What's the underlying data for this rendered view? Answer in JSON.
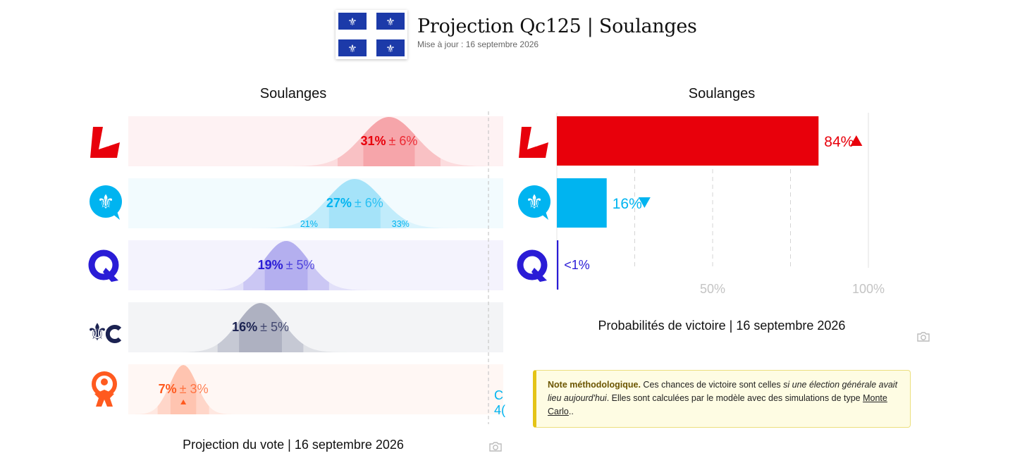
{
  "header": {
    "title": "Projection Qc125 | Soulanges",
    "updated": "Mise à jour : 16 septembre 2026"
  },
  "colors": {
    "plq": "#e8000b",
    "pq": "#00b4f0",
    "caq": "#2a1cd6",
    "pcq": "#1b2251",
    "qs": "#ff5a1f"
  },
  "vote_panel": {
    "title": "Soulanges",
    "caption": "Projection du vote | 16 septembre 2026",
    "cutoff_label_line1": "C",
    "cutoff_label_line2": "4("
  },
  "win_panel": {
    "title": "Soulanges",
    "caption": "Probabilités de victoire | 16 septembre 2026"
  },
  "note": {
    "heading": "Note méthodologique.",
    "text1": " Ces chances de victoire sont celles ",
    "italic": "si une élection générale avait lieu aujourd'hui",
    "text2": ". Elles sont calculées par le modèle avec des simulations de type ",
    "link": "Monte Carlo",
    "text3": ".."
  },
  "chart_data": [
    {
      "type": "bar",
      "subtype": "vote-projection-range",
      "title": "Soulanges",
      "caption": "Projection du vote | 16 septembre 2026",
      "xlim": [
        0,
        50
      ],
      "rows": [
        {
          "party_icon": "plq-logo",
          "color": "#e8000b",
          "value": 31,
          "margin": 6,
          "label": "31%",
          "margin_label": "± 6%",
          "trend": ""
        },
        {
          "party_icon": "pq-logo",
          "color": "#00b4f0",
          "value": 27,
          "margin": 6,
          "label": "27%",
          "margin_label": "± 6%",
          "trend": "",
          "range_low_label": "21%",
          "range_high_label": "33%"
        },
        {
          "party_icon": "caq-logo",
          "color": "#2a1cd6",
          "value": 19,
          "margin": 5,
          "label": "19%",
          "margin_label": "± 5%",
          "trend": ""
        },
        {
          "party_icon": "pcq-logo",
          "color": "#1b2251",
          "value": 16,
          "margin": 5,
          "label": "16%",
          "margin_label": "± 5%",
          "trend": ""
        },
        {
          "party_icon": "qs-logo",
          "color": "#ff5a1f",
          "value": 7,
          "margin": 3,
          "label": "7%",
          "margin_label": "± 3%",
          "trend": "up"
        }
      ]
    },
    {
      "type": "bar",
      "subtype": "win-probability",
      "title": "Soulanges",
      "caption": "Probabilités de victoire | 16 septembre 2026",
      "xlim": [
        0,
        100
      ],
      "xticks": [
        "50%",
        "100%"
      ],
      "rows": [
        {
          "party_icon": "plq-logo",
          "color": "#e8000b",
          "value": 84,
          "label": "84%",
          "trend": "up"
        },
        {
          "party_icon": "pq-logo",
          "color": "#00b4f0",
          "value": 16,
          "label": "16%",
          "trend": "down"
        },
        {
          "party_icon": "caq-logo",
          "color": "#2a1cd6",
          "value": 0.5,
          "label": "<1%",
          "trend": ""
        }
      ]
    }
  ]
}
